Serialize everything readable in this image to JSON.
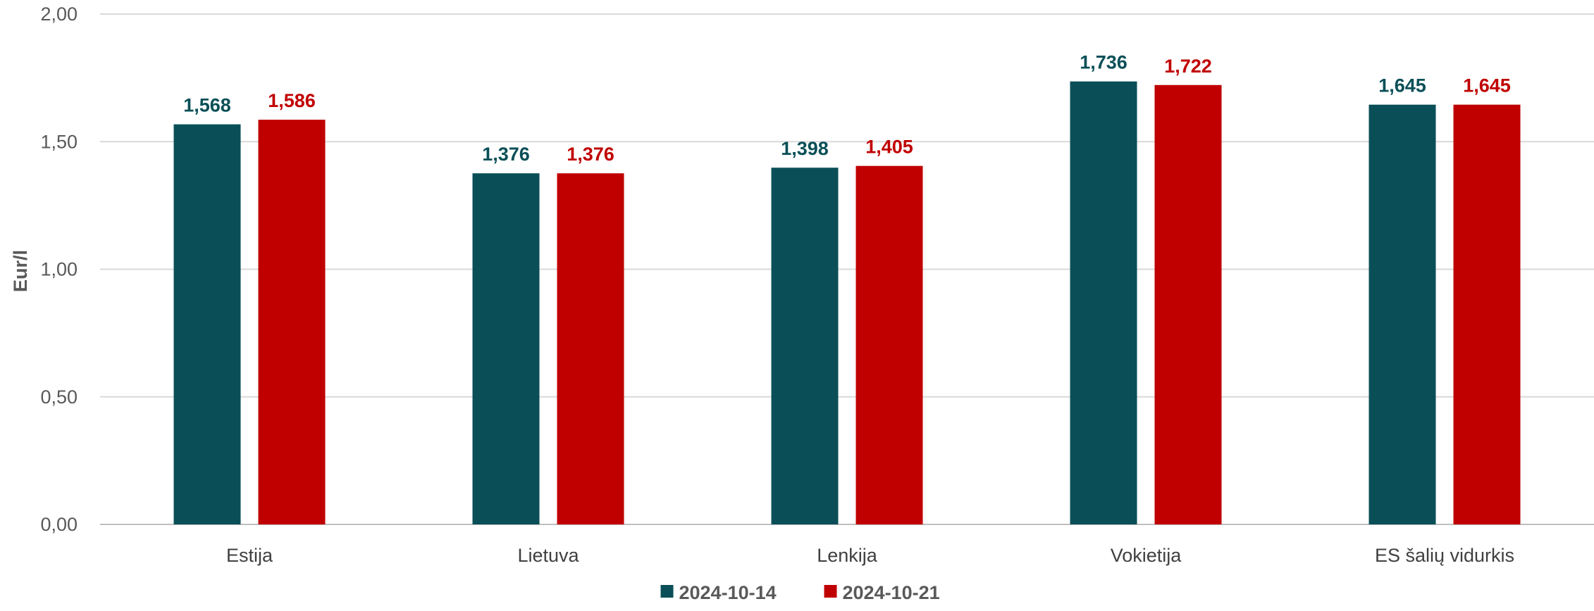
{
  "chart_data": {
    "type": "bar",
    "title": "",
    "xlabel": "",
    "ylabel": "Eur/l",
    "ylim": [
      0,
      2
    ],
    "yticks": [
      0,
      0.5,
      1,
      1.5,
      2
    ],
    "ytick_labels": [
      "0,00",
      "0,50",
      "1,00",
      "1,50",
      "2,00"
    ],
    "grid": true,
    "legend_position": "bottom",
    "categories": [
      "Estija",
      "Lietuva",
      "Lenkija",
      "Vokietija",
      "ES šalių vidurkis"
    ],
    "series": [
      {
        "name": "2024-10-14",
        "color": "#0a4f57",
        "values": [
          1.568,
          1.376,
          1.398,
          1.736,
          1.645
        ],
        "labels": [
          "1,568",
          "1,376",
          "1,398",
          "1,736",
          "1,645"
        ]
      },
      {
        "name": "2024-10-21",
        "color": "#c00000",
        "values": [
          1.586,
          1.376,
          1.405,
          1.722,
          1.645
        ],
        "labels": [
          "1,586",
          "1,376",
          "1,405",
          "1,722",
          "1,645"
        ]
      }
    ]
  }
}
